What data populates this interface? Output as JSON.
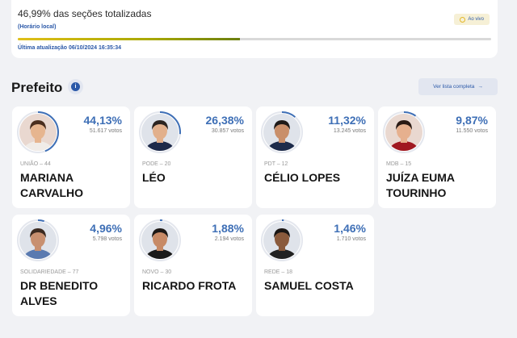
{
  "summary": {
    "sections_text": "46,99% das seções totalizadas",
    "sections_fraction": 0.4699,
    "local_time": "(Horário local)",
    "last_update": "Última atualização 06/10/2024 16:35:34",
    "live_label": "Ao vivo"
  },
  "section": {
    "title": "Prefeito",
    "info": "i",
    "full_list": "Ver lista completa",
    "arrow": "→"
  },
  "candidates": [
    {
      "party": "UNIÃO – 44",
      "name": "MARIANA CARVALHO",
      "pct": "44,13%",
      "votes": "51.617 votos",
      "share": 0.4413
    },
    {
      "party": "PODE – 20",
      "name": "LÉO",
      "pct": "26,38%",
      "votes": "30.857 votos",
      "share": 0.2638
    },
    {
      "party": "PDT – 12",
      "name": "CÉLIO LOPES",
      "pct": "11,32%",
      "votes": "13.245 votos",
      "share": 0.1132
    },
    {
      "party": "MDB – 15",
      "name": "JUÍZA EUMA TOURINHO",
      "pct": "9,87%",
      "votes": "11.550 votos",
      "share": 0.0987
    },
    {
      "party": "SOLIDARIEDADE – 77",
      "name": "DR BENEDITO ALVES",
      "pct": "4,96%",
      "votes": "5.798 votos",
      "share": 0.0496
    },
    {
      "party": "NOVO – 30",
      "name": "RICARDO FROTA",
      "pct": "1,88%",
      "votes": "2.194 votos",
      "share": 0.0188
    },
    {
      "party": "REDE – 18",
      "name": "SAMUEL COSTA",
      "pct": "1,46%",
      "votes": "1.710 votos",
      "share": 0.0146
    }
  ],
  "colors": {
    "accent": "#3e6fb6",
    "progress": "#a8a800",
    "live": "#e4b728"
  }
}
